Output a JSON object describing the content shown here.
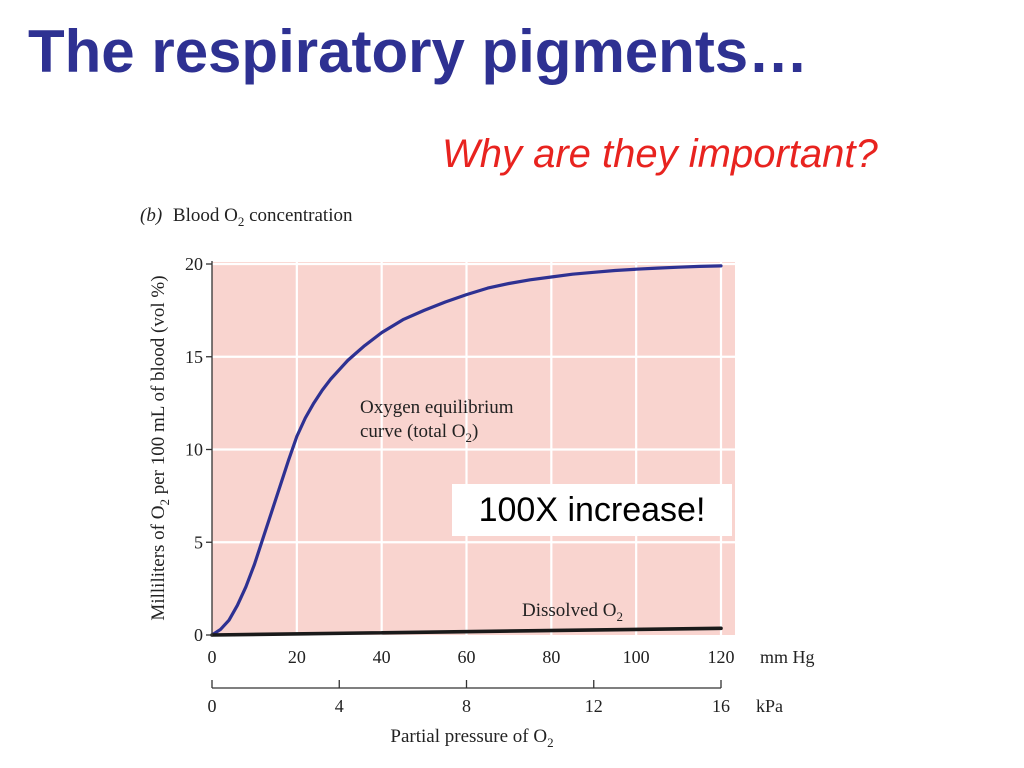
{
  "slide": {
    "title": "The respiratory pigments…",
    "subtitle": "Why are they important?",
    "title_color": "#2e3192",
    "subtitle_color": "#e8231f",
    "callout": "100X increase!"
  },
  "chart_data": {
    "type": "line",
    "panel_label": "(b)",
    "title": "Blood O",
    "title_sub": "2",
    "title_rest": " concentration",
    "ylabel": "Milliliters of O",
    "ylabel_sub": "2",
    "ylabel_rest": " per 100 mL of blood (vol %)",
    "xlabel": "Partial pressure of O",
    "xlabel_sub": "2",
    "xlim": [
      0,
      120
    ],
    "ylim": [
      0,
      20
    ],
    "xticks": [
      0,
      20,
      40,
      60,
      80,
      100,
      120
    ],
    "yticks": [
      0,
      5,
      10,
      15,
      20
    ],
    "x_unit": "mm Hg",
    "secondary_axis": {
      "unit": "kPa",
      "range": [
        0,
        16
      ],
      "ticks": [
        0,
        4,
        8,
        12,
        16
      ]
    },
    "grid": true,
    "background_color": "#f9d4cf",
    "series": [
      {
        "name": "Oxygen equilibrium curve (total O",
        "name_sub": "2",
        "name_end": ")",
        "color": "#2e3192",
        "x": [
          0,
          2,
          4,
          6,
          8,
          10,
          12,
          14,
          16,
          18,
          20,
          22,
          24,
          26,
          28,
          30,
          32,
          34,
          36,
          38,
          40,
          45,
          50,
          55,
          60,
          65,
          70,
          75,
          80,
          85,
          90,
          95,
          100,
          105,
          110,
          115,
          120
        ],
        "y": [
          0,
          0.3,
          0.8,
          1.6,
          2.6,
          3.8,
          5.2,
          6.6,
          8.0,
          9.4,
          10.7,
          11.7,
          12.5,
          13.2,
          13.8,
          14.3,
          14.8,
          15.2,
          15.6,
          15.95,
          16.3,
          17.0,
          17.5,
          17.95,
          18.35,
          18.7,
          18.95,
          19.15,
          19.3,
          19.45,
          19.55,
          19.65,
          19.72,
          19.78,
          19.83,
          19.87,
          19.9
        ]
      },
      {
        "name": "Dissolved O",
        "name_sub": "2",
        "color": "#1a1a1a",
        "x": [
          0,
          120
        ],
        "y": [
          0,
          0.36
        ]
      }
    ]
  }
}
